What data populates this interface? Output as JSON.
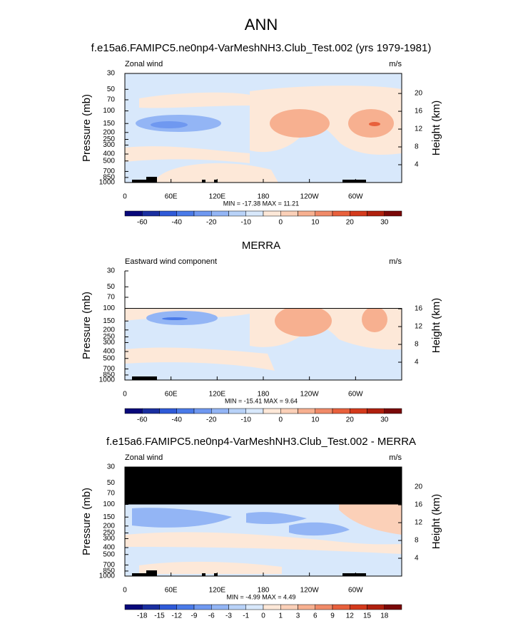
{
  "title": "ANN",
  "chart_data": [
    {
      "type": "contour",
      "title": "f.e15a6.FAMIPC5.ne0np4-VarMeshNH3.Club_Test.002 (yrs 1979-1981)",
      "left_label": "Zonal wind",
      "units": "m/s",
      "ylabel": "Pressure (mb)",
      "y2label": "Height (km)",
      "xlim": [
        0,
        360
      ],
      "xticks": [
        0,
        {
          "value": 60,
          "label": "60E"
        },
        {
          "value": 120,
          "label": "120E"
        },
        180,
        {
          "value": 240,
          "label": "120W"
        },
        {
          "value": 300,
          "label": "60W"
        }
      ],
      "ylim": [
        1000,
        30
      ],
      "log_y": true,
      "yticks": [
        30,
        50,
        70,
        100,
        150,
        200,
        250,
        300,
        400,
        500,
        700,
        850,
        1000
      ],
      "y2lim": [
        0,
        24.5
      ],
      "y2ticks": [
        4,
        8,
        12,
        16,
        20
      ],
      "stats": "MIN = -17.38  MAX =  11.21",
      "colorbar": {
        "levels": [
          -60,
          -50,
          -40,
          -30,
          -20,
          -15,
          -10,
          -5,
          0,
          5,
          10,
          15,
          20,
          25,
          30
        ],
        "ticks": [
          -60,
          -40,
          -20,
          -10,
          0,
          10,
          20,
          30
        ],
        "colors": [
          "#08087a",
          "#1a2fa0",
          "#2f5ad8",
          "#4a7ae8",
          "#6f98f0",
          "#93b5f5",
          "#b8d2f8",
          "#d8e8fb",
          "#fde8d8",
          "#fbd0b8",
          "#f7b090",
          "#f08a68",
          "#e8603c",
          "#d43a1c",
          "#b0200e",
          "#7a0808"
        ]
      }
    },
    {
      "type": "contour",
      "title": "MERRA",
      "left_label": "Eastward wind component",
      "units": "m/s",
      "ylabel": "Pressure (mb)",
      "y2label": "Height (km)",
      "xlim": [
        0,
        360
      ],
      "xticks": [
        0,
        {
          "value": 60,
          "label": "60E"
        },
        {
          "value": 120,
          "label": "120E"
        },
        180,
        {
          "value": 240,
          "label": "120W"
        },
        {
          "value": 300,
          "label": "60W"
        }
      ],
      "ylim": [
        1000,
        30
      ],
      "log_y": true,
      "yticks": [
        30,
        50,
        70,
        100,
        150,
        200,
        250,
        300,
        400,
        500,
        700,
        850,
        1000
      ],
      "data_ylim": [
        1000,
        100
      ],
      "mask_color": "#ffffff",
      "y2lim": [
        0,
        24.5
      ],
      "y2ticks": [
        4,
        8,
        12,
        16
      ],
      "stats": "MIN = -15.41  MAX =   9.64",
      "colorbar": {
        "levels": [
          -60,
          -50,
          -40,
          -30,
          -20,
          -15,
          -10,
          -5,
          0,
          5,
          10,
          15,
          20,
          25,
          30
        ],
        "ticks": [
          -60,
          -40,
          -20,
          -10,
          0,
          10,
          20,
          30
        ],
        "colors": [
          "#08087a",
          "#1a2fa0",
          "#2f5ad8",
          "#4a7ae8",
          "#6f98f0",
          "#93b5f5",
          "#b8d2f8",
          "#d8e8fb",
          "#fde8d8",
          "#fbd0b8",
          "#f7b090",
          "#f08a68",
          "#e8603c",
          "#d43a1c",
          "#b0200e",
          "#7a0808"
        ]
      }
    },
    {
      "type": "contour",
      "title": "f.e15a6.FAMIPC5.ne0np4-VarMeshNH3.Club_Test.002 - MERRA",
      "left_label": "Zonal wind",
      "units": "m/s",
      "ylabel": "Pressure (mb)",
      "y2label": "Height (km)",
      "xlim": [
        0,
        360
      ],
      "xticks": [
        0,
        {
          "value": 60,
          "label": "60E"
        },
        {
          "value": 120,
          "label": "120E"
        },
        180,
        {
          "value": 240,
          "label": "120W"
        },
        {
          "value": 300,
          "label": "60W"
        }
      ],
      "ylim": [
        1000,
        30
      ],
      "log_y": true,
      "yticks": [
        30,
        50,
        70,
        100,
        150,
        200,
        250,
        300,
        400,
        500,
        700,
        850,
        1000
      ],
      "data_ylim": [
        1000,
        100
      ],
      "mask_color": "#000000",
      "y2lim": [
        0,
        24.5
      ],
      "y2ticks": [
        4,
        8,
        12,
        16,
        20
      ],
      "stats": "MIN =  -4.99  MAX =   4.49",
      "colorbar": {
        "ticks": [
          -18,
          -15,
          -12,
          -9,
          -6,
          -3,
          -1,
          0,
          1,
          3,
          6,
          9,
          12,
          15,
          18
        ],
        "colors": [
          "#08087a",
          "#1a2fa0",
          "#2f5ad8",
          "#4a7ae8",
          "#6f98f0",
          "#93b5f5",
          "#b8d2f8",
          "#d8e8fb",
          "#fde8d8",
          "#fbd0b8",
          "#f7b090",
          "#f08a68",
          "#e8603c",
          "#d43a1c",
          "#b0200e",
          "#7a0808"
        ]
      }
    }
  ]
}
